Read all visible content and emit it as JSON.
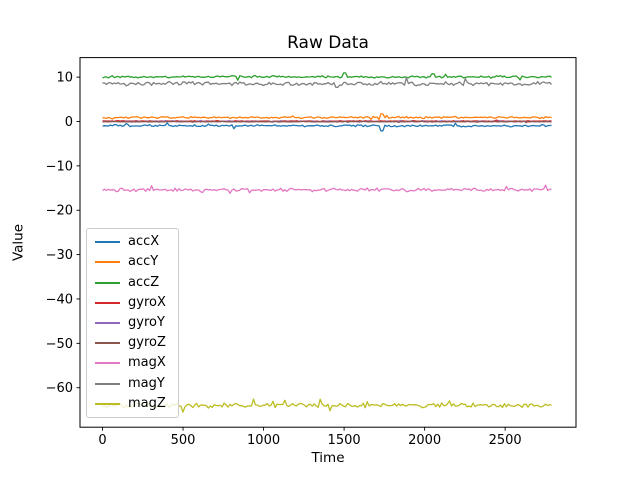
{
  "figure": {
    "background": "#ffffff",
    "text_color": "#000000",
    "spine_color": "#000000",
    "legend_border_color": "#cccccc"
  },
  "chart_data": {
    "type": "line",
    "title": "Raw Data",
    "xlabel": "Time",
    "ylabel": "Value",
    "xlim": [
      -140,
      2940
    ],
    "ylim": [
      -68.9,
      14.4
    ],
    "x_range_of_data": [
      0,
      2800
    ],
    "x_ticks": [
      0,
      500,
      1000,
      1500,
      2000,
      2500
    ],
    "x_tick_labels": [
      "0",
      "500",
      "1000",
      "1500",
      "2000",
      "2500"
    ],
    "y_ticks": [
      10,
      0,
      -10,
      -20,
      -30,
      -40,
      -50,
      -60
    ],
    "y_tick_labels": [
      "10",
      "0",
      "−10",
      "−20",
      "−30",
      "−40",
      "−50",
      "−60"
    ],
    "grid": false,
    "legend_position": "center-left inside axes",
    "series": [
      {
        "name": "accX",
        "color": "#1f77b4",
        "mean": -0.95,
        "noise": 0.28,
        "spikes": [
          {
            "t": 1740,
            "v": -2.1
          }
        ]
      },
      {
        "name": "accY",
        "color": "#ff7f0e",
        "mean": 0.9,
        "noise": 0.25,
        "spikes": [
          {
            "t": 1740,
            "v": 1.7
          }
        ]
      },
      {
        "name": "accZ",
        "color": "#2ca02c",
        "mean": 10.05,
        "noise": 0.3,
        "spikes": [
          {
            "t": 1500,
            "v": 10.95
          },
          {
            "t": 2050,
            "v": 10.75
          }
        ]
      },
      {
        "name": "gyroX",
        "color": "#d62728",
        "mean": 0.1,
        "noise": 0.09,
        "spikes": []
      },
      {
        "name": "gyroY",
        "color": "#9467bd",
        "mean": 0.0,
        "noise": 0.09,
        "spikes": []
      },
      {
        "name": "gyroZ",
        "color": "#8c564b",
        "mean": -0.05,
        "noise": 0.09,
        "spikes": []
      },
      {
        "name": "magX",
        "color": "#e377c2",
        "mean": -15.4,
        "noise": 0.45,
        "spikes": []
      },
      {
        "name": "magY",
        "color": "#7f7f7f",
        "mean": 8.5,
        "noise": 0.55,
        "spikes": [
          {
            "t": 1450,
            "v": 7.7
          }
        ]
      },
      {
        "name": "magZ",
        "color": "#bcbd22",
        "mean": -64.0,
        "noise": 0.65,
        "spikes": []
      }
    ]
  }
}
